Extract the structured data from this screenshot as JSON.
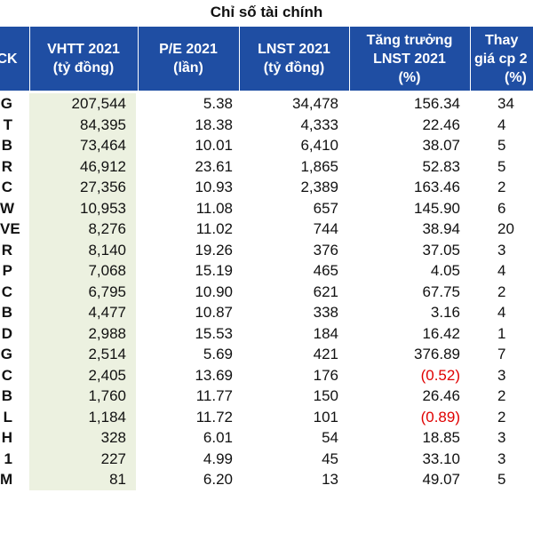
{
  "title": "Chỉ số tài chính",
  "header": {
    "col0": "CK",
    "col1": [
      "VHTT 2021",
      "(tỷ đồng)"
    ],
    "col2": [
      "P/E 2021",
      "(lần)"
    ],
    "col3": [
      "LNST 2021",
      "(tỷ đồng)"
    ],
    "col4": [
      "Tăng trưởng",
      "LNST 2021",
      "(%)"
    ],
    "col5": [
      "Thay",
      "giá cp 2",
      "(%)"
    ]
  },
  "rows": [
    {
      "ck": "G",
      "vhtt": "207,544",
      "pe": "5.38",
      "lnst": "34,478",
      "growth": "156.34",
      "change": "34",
      "neg": false
    },
    {
      "ck": "T",
      "vhtt": "84,395",
      "pe": "18.38",
      "lnst": "4,333",
      "growth": "22.46",
      "change": "4",
      "neg": false
    },
    {
      "ck": "B",
      "vhtt": "73,464",
      "pe": "10.01",
      "lnst": "6,410",
      "growth": "38.07",
      "change": "5",
      "neg": false
    },
    {
      "ck": "R",
      "vhtt": "46,912",
      "pe": "23.61",
      "lnst": "1,865",
      "growth": "52.83",
      "change": "5",
      "neg": false
    },
    {
      "ck": "C",
      "vhtt": "27,356",
      "pe": "10.93",
      "lnst": "2,389",
      "growth": "163.46",
      "change": "2",
      "neg": false
    },
    {
      "ck": "W",
      "vhtt": "10,953",
      "pe": "11.08",
      "lnst": "657",
      "growth": "145.90",
      "change": "6",
      "neg": false
    },
    {
      "ck": "VE",
      "vhtt": "8,276",
      "pe": "11.02",
      "lnst": "744",
      "growth": "38.94",
      "change": "20",
      "neg": false
    },
    {
      "ck": "R",
      "vhtt": "8,140",
      "pe": "19.26",
      "lnst": "376",
      "growth": "37.05",
      "change": "3",
      "neg": false
    },
    {
      "ck": "P",
      "vhtt": "7,068",
      "pe": "15.19",
      "lnst": "465",
      "growth": "4.05",
      "change": "4",
      "neg": false
    },
    {
      "ck": "C",
      "vhtt": "6,795",
      "pe": "10.90",
      "lnst": "621",
      "growth": "67.75",
      "change": "2",
      "neg": false
    },
    {
      "ck": "B",
      "vhtt": "4,477",
      "pe": "10.87",
      "lnst": "338",
      "growth": "3.16",
      "change": "4",
      "neg": false
    },
    {
      "ck": "D",
      "vhtt": "2,988",
      "pe": "15.53",
      "lnst": "184",
      "growth": "16.42",
      "change": "1",
      "neg": false
    },
    {
      "ck": "G",
      "vhtt": "2,514",
      "pe": "5.69",
      "lnst": "421",
      "growth": "376.89",
      "change": "7",
      "neg": false
    },
    {
      "ck": "C",
      "vhtt": "2,405",
      "pe": "13.69",
      "lnst": "176",
      "growth": "(0.52)",
      "change": "3",
      "neg": true
    },
    {
      "ck": "B",
      "vhtt": "1,760",
      "pe": "11.77",
      "lnst": "150",
      "growth": "26.46",
      "change": "2",
      "neg": false
    },
    {
      "ck": "L",
      "vhtt": "1,184",
      "pe": "11.72",
      "lnst": "101",
      "growth": "(0.89)",
      "change": "2",
      "neg": true
    },
    {
      "ck": "H",
      "vhtt": "328",
      "pe": "6.01",
      "lnst": "54",
      "growth": "18.85",
      "change": "3",
      "neg": false
    },
    {
      "ck": "1",
      "vhtt": "227",
      "pe": "4.99",
      "lnst": "45",
      "growth": "33.10",
      "change": "3",
      "neg": false
    },
    {
      "ck": "M",
      "vhtt": "81",
      "pe": "6.20",
      "lnst": "13",
      "growth": "49.07",
      "change": "5",
      "neg": false
    }
  ],
  "colors": {
    "header_bg": "#1f4ea3",
    "highlight_col": "#ecf1e0",
    "negative": "#e00000"
  }
}
